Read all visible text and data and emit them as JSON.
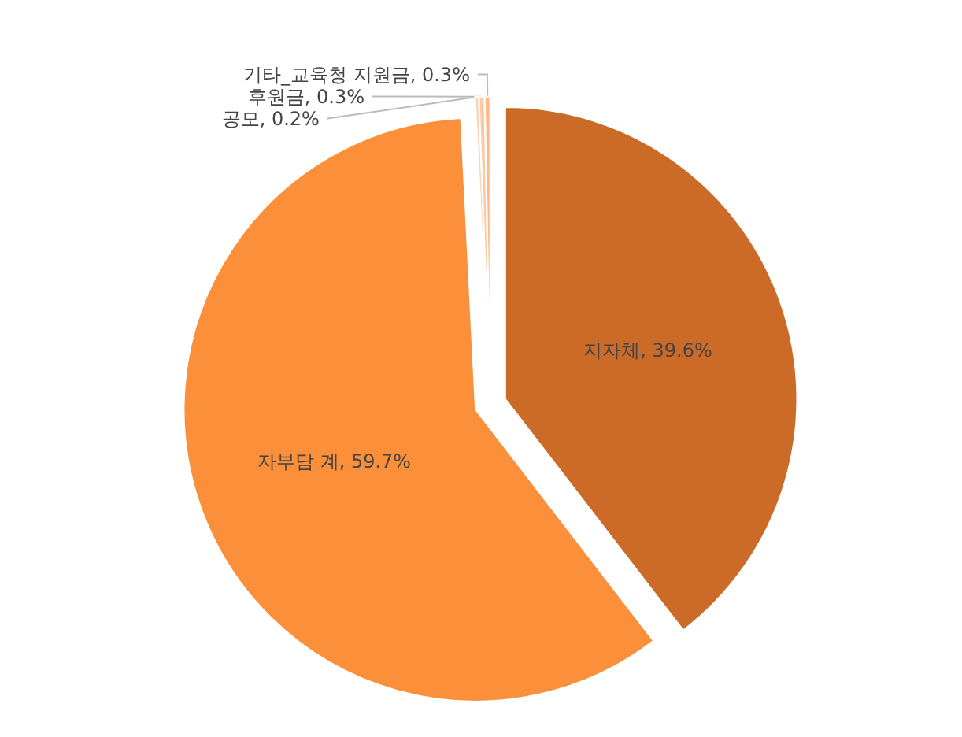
{
  "chart_data": {
    "type": "pie",
    "categories": [
      "지자체",
      "자부담 계",
      "공모",
      "후원금",
      "기타_교육청 지원금"
    ],
    "values": [
      39.6,
      59.7,
      0.2,
      0.3,
      0.3
    ],
    "value_labels": [
      ", 39.6%",
      ", 59.7%",
      ", 0.2%",
      ", 0.3%",
      ", 0.3%"
    ],
    "colors": [
      "#cc6a28",
      "#fb8f3a",
      "#fcd2b4",
      "#fcc9a4",
      "#fdb987"
    ],
    "legend": false
  }
}
